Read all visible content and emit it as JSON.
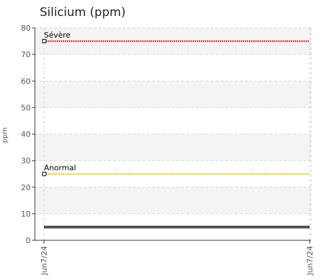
{
  "chart_data": {
    "type": "line",
    "title": "Silicium (ppm)",
    "ylabel": "ppm",
    "xlabel": "",
    "ylim": [
      0,
      80
    ],
    "yticks": [
      0,
      10,
      20,
      30,
      40,
      50,
      60,
      70,
      80
    ],
    "x": [
      "Jun7/24",
      "Jun7/24"
    ],
    "grid": true,
    "thresholds": [
      {
        "label": "Sévère",
        "value": 75,
        "color": "#e8141e"
      },
      {
        "label": "Anormal",
        "value": 25,
        "color": "#e6c800"
      }
    ],
    "series": [
      {
        "values": [
          5,
          5
        ],
        "color": "#555555"
      }
    ]
  }
}
